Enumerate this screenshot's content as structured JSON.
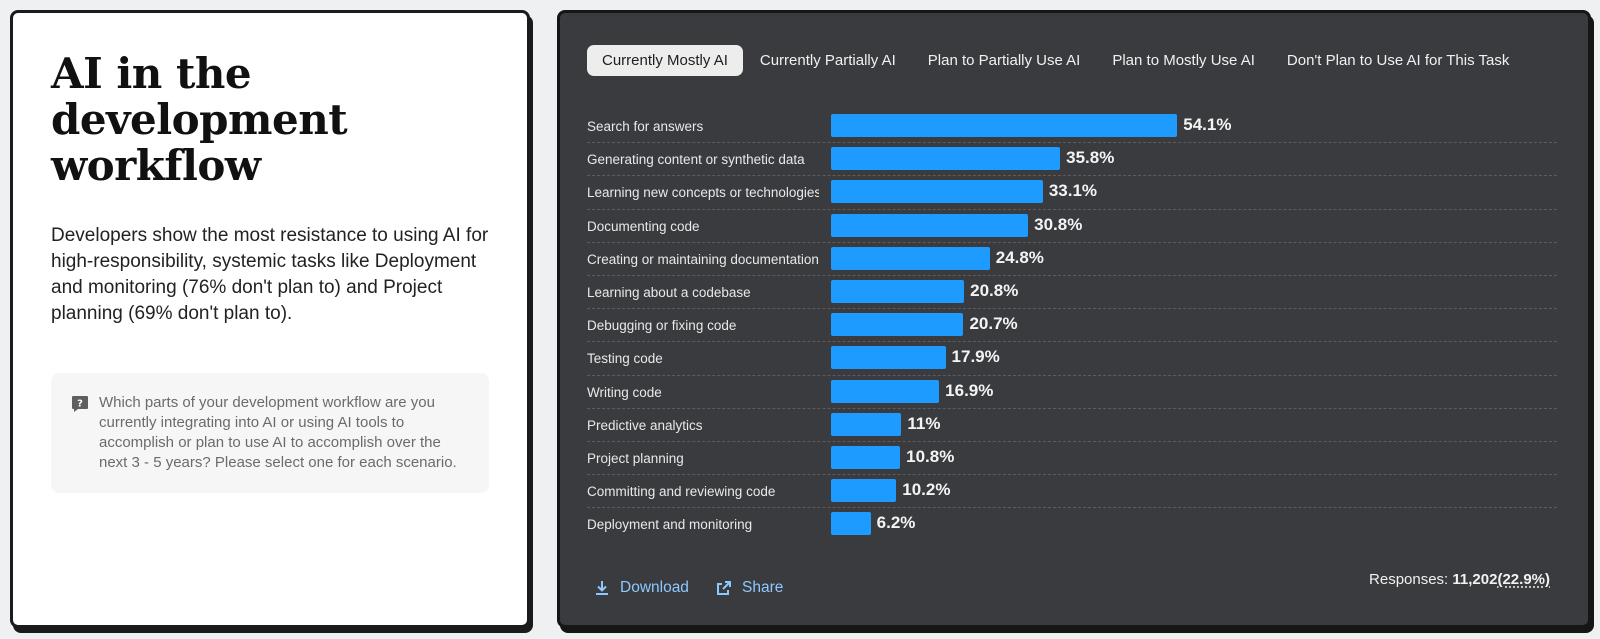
{
  "left": {
    "title": "AI in the development workflow",
    "lead": "Developers show the most resistance to using AI for high-responsibility, systemic tasks like Deployment and monitoring (76% don't plan to) and Project planning (69% don't plan to).",
    "question": "Which parts of your development workflow are you currently integrating into AI or using AI tools to accomplish or plan to use AI to accomplish over the next 3 - 5 years? Please select one for each scenario.",
    "question_icon": "question-mark-icon"
  },
  "tabs": [
    {
      "label": "Currently Mostly AI",
      "active": true
    },
    {
      "label": "Currently Partially AI",
      "active": false
    },
    {
      "label": "Plan to Partially Use AI",
      "active": false
    },
    {
      "label": "Plan to Mostly Use AI",
      "active": false
    },
    {
      "label": "Don't Plan to Use AI for This Task",
      "active": false
    }
  ],
  "chart_data": {
    "type": "bar",
    "orientation": "horizontal",
    "categories": [
      "Search for answers",
      "Generating content or synthetic data",
      "Learning new concepts or technologies",
      "Documenting code",
      "Creating or maintaining documentation",
      "Learning about a codebase",
      "Debugging or fixing code",
      "Testing code",
      "Writing code",
      "Predictive analytics",
      "Project planning",
      "Committing and reviewing code",
      "Deployment and monitoring"
    ],
    "values": [
      54.1,
      35.8,
      33.1,
      30.8,
      24.8,
      20.8,
      20.7,
      17.9,
      16.9,
      11,
      10.8,
      10.2,
      6.2
    ],
    "value_labels": [
      "54.1%",
      "35.8%",
      "33.1%",
      "30.8%",
      "24.8%",
      "20.8%",
      "20.7%",
      "17.9%",
      "16.9%",
      "11%",
      "10.8%",
      "10.2%",
      "6.2%"
    ],
    "unit": "%",
    "bar_color": "#1e9bff",
    "xlim": [
      0,
      100
    ]
  },
  "footer": {
    "download_label": "Download",
    "share_label": "Share",
    "responses_label": "Responses: ",
    "responses_count": "11,202",
    "responses_pct": "(22.9%)"
  },
  "colors": {
    "panel_bg": "#393b3e",
    "accent_bar": "#1e9bff",
    "link": "#8fc7ff"
  }
}
